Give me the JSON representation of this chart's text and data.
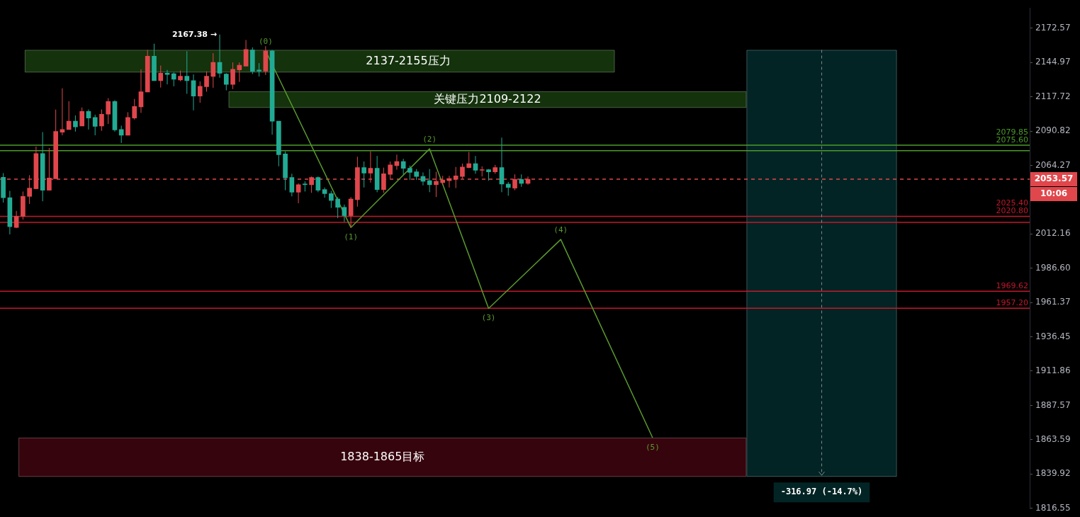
{
  "chart_data": {
    "type": "candlestick",
    "log": true,
    "tick_labels": "y",
    "categories": [
      null,
      null,
      null,
      null,
      null,
      null,
      null,
      null,
      null,
      null,
      null,
      null,
      null,
      null,
      null,
      null,
      null,
      null,
      null,
      null,
      null,
      null,
      null,
      null,
      null,
      null,
      null,
      null,
      null,
      null,
      null,
      null,
      null,
      null,
      null,
      null,
      null,
      null,
      null,
      null,
      null,
      null,
      null,
      null,
      null,
      null,
      null,
      null,
      null,
      null,
      null,
      null,
      null,
      null,
      null,
      null,
      null,
      null,
      null,
      null,
      null,
      null,
      null,
      null,
      null,
      null,
      null,
      null,
      null,
      null,
      null,
      null,
      null,
      null,
      null,
      null,
      null,
      null,
      null,
      null,
      null,
      null,
      null,
      null,
      null,
      null,
      null,
      null,
      null,
      null,
      null,
      null,
      null,
      null,
      null,
      null,
      null,
      null,
      null,
      null,
      null,
      null,
      null,
      null,
      null,
      null,
      null,
      null,
      null,
      null,
      null,
      null,
      null,
      null,
      null,
      null,
      null,
      null,
      null,
      null,
      null,
      null,
      null,
      null,
      null,
      null,
      null,
      null,
      null,
      null,
      null,
      null,
      null,
      null,
      null,
      null,
      null,
      null,
      null,
      null,
      null,
      null,
      null,
      null,
      null,
      null,
      null,
      null,
      null,
      null,
      null,
      null,
      null,
      null,
      null,
      null,
      null
    ],
    "ohlc": [
      [
        2055.1,
        2058.3,
        2035.8,
        2039.5
      ],
      [
        2039.5,
        2044.7,
        2011.8,
        2017.6
      ],
      [
        2017,
        2029.5,
        2016.5,
        2025.4
      ],
      [
        2025.4,
        2044.2,
        2022.9,
        2040.5
      ],
      [
        2040.5,
        2056.7,
        2034.8,
        2046.8
      ],
      [
        2046.3,
        2078.8,
        2046.3,
        2073.4
      ],
      [
        2073.4,
        2090,
        2036.8,
        2045.2
      ],
      [
        2045.2,
        2077.6,
        2045,
        2054.6
      ],
      [
        2054,
        2107.6,
        2054,
        2090.5
      ],
      [
        2089.9,
        2124.4,
        2087.5,
        2092
      ],
      [
        2092,
        2114.2,
        2092,
        2098.5
      ],
      [
        2098.5,
        2103,
        2090.4,
        2094.1
      ],
      [
        2094.7,
        2109.3,
        2094.7,
        2106.2
      ],
      [
        2106.2,
        2107.7,
        2092,
        2101
      ],
      [
        2101.5,
        2103.6,
        2087.5,
        2094.5
      ],
      [
        2094.7,
        2107.7,
        2091,
        2103.9
      ],
      [
        2104,
        2116.6,
        2096.3,
        2114
      ],
      [
        2114,
        2115,
        2090.4,
        2091.7
      ],
      [
        2092,
        2095,
        2081.5,
        2087.5
      ],
      [
        2087.5,
        2105.5,
        2087.5,
        2101.4
      ],
      [
        2101,
        2116,
        2099.8,
        2110
      ],
      [
        2109.7,
        2139.5,
        2105,
        2121.7
      ],
      [
        2121.4,
        2155,
        2121.4,
        2150
      ],
      [
        2150,
        2160,
        2130.5,
        2130.5
      ],
      [
        2130.5,
        2142.5,
        2125,
        2136.4
      ],
      [
        2136.4,
        2139,
        2127.5,
        2135.3
      ],
      [
        2136,
        2137,
        2126,
        2131.6
      ],
      [
        2131,
        2138.5,
        2130,
        2134
      ],
      [
        2134,
        2154,
        2120,
        2130.5
      ],
      [
        2130.5,
        2135.4,
        2107,
        2118.3
      ],
      [
        2118.3,
        2129.9,
        2113,
        2126
      ],
      [
        2125.6,
        2137.9,
        2121.7,
        2134
      ],
      [
        2133.8,
        2152.4,
        2124.8,
        2144.97
      ],
      [
        2145,
        2167.38,
        2132.8,
        2136.4
      ],
      [
        2135.7,
        2136.4,
        2122.8,
        2127.5
      ],
      [
        2127.5,
        2145,
        2123.8,
        2139.5
      ],
      [
        2139,
        2145,
        2129.5,
        2142.7
      ],
      [
        2142,
        2163,
        2142,
        2155.4
      ],
      [
        2155,
        2157,
        2135.7,
        2137.9
      ],
      [
        2139,
        2144.4,
        2133.8,
        2138
      ],
      [
        2138,
        2158,
        2135,
        2154.3
      ],
      [
        2154.3,
        2155,
        2088,
        2098.5
      ],
      [
        2098.5,
        2098.5,
        2063.5,
        2072.5
      ],
      [
        2073,
        2075,
        2045.2,
        2054.6
      ],
      [
        2055,
        2057.8,
        2040.5,
        2043.7
      ],
      [
        2043.7,
        2050.4,
        2035.3,
        2049.4
      ],
      [
        2050,
        2052,
        2044.2,
        2049.4
      ],
      [
        2049.4,
        2055.7,
        2043.2,
        2055
      ],
      [
        2055,
        2055.7,
        2043.7,
        2045.2
      ],
      [
        2045.7,
        2047.3,
        2039.5,
        2042.6
      ],
      [
        2042.6,
        2044.7,
        2031.7,
        2037.4
      ],
      [
        2038.5,
        2040,
        2024,
        2032.2
      ],
      [
        2032.2,
        2034.3,
        2021.2,
        2025.9
      ],
      [
        2025.9,
        2040,
        2017,
        2038.5
      ],
      [
        2038,
        2070.9,
        2032.7,
        2062.5
      ],
      [
        2062.5,
        2067.2,
        2047.3,
        2058.3
      ],
      [
        2058.3,
        2075.1,
        2051,
        2062
      ],
      [
        2062,
        2071.5,
        2043.7,
        2045.7
      ],
      [
        2045.7,
        2062.5,
        2043.2,
        2057.8
      ],
      [
        2057.3,
        2067.2,
        2054.1,
        2064.6
      ],
      [
        2064,
        2072.5,
        2060.9,
        2067.2
      ],
      [
        2067.2,
        2069.3,
        2057.3,
        2062
      ],
      [
        2062,
        2064,
        2053,
        2058.8
      ],
      [
        2059.3,
        2061.4,
        2053,
        2055.7
      ],
      [
        2055.7,
        2058.8,
        2048.9,
        2052
      ],
      [
        2052.5,
        2061.4,
        2043.7,
        2049.4
      ],
      [
        2049.4,
        2059.3,
        2040,
        2052
      ],
      [
        2051,
        2056.2,
        2049.4,
        2053
      ],
      [
        2052.5,
        2056.2,
        2047.3,
        2054.1
      ],
      [
        2053.5,
        2063,
        2046.8,
        2056.2
      ],
      [
        2055.7,
        2065.6,
        2054.1,
        2063
      ],
      [
        2062.5,
        2074.6,
        2062,
        2065.6
      ],
      [
        2065.6,
        2071.5,
        2057.8,
        2060.4
      ],
      [
        2060.4,
        2063.5,
        2055.7,
        2060.9
      ],
      [
        2060.9,
        2061.4,
        2052.5,
        2059.3
      ],
      [
        2059.3,
        2064.6,
        2057.8,
        2062.5
      ],
      [
        2062.5,
        2085.7,
        2043.7,
        2049.9
      ],
      [
        2049.9,
        2051.5,
        2041,
        2047.3
      ],
      [
        2046.8,
        2057.3,
        2045.2,
        2053.5
      ],
      [
        2053.5,
        2057.3,
        2047.8,
        2050.4
      ],
      [
        2050.4,
        2055.7,
        2049.4,
        2053.57
      ],
      null,
      null,
      null,
      null,
      null,
      null,
      null,
      null,
      null,
      null,
      null,
      null,
      null,
      null,
      null,
      null,
      null,
      null,
      null,
      null,
      null,
      null,
      null,
      null,
      null,
      null,
      null,
      null,
      null,
      null,
      null,
      null,
      null,
      null,
      null,
      null,
      null,
      null,
      null,
      null,
      null,
      null,
      null,
      null,
      null,
      null,
      null,
      null,
      null,
      null,
      null,
      null,
      null,
      null,
      null,
      null,
      null,
      null,
      null,
      null,
      null,
      null,
      null,
      null,
      null,
      null,
      null,
      null,
      null,
      null,
      null,
      null,
      null,
      null,
      null,
      null
    ],
    "series": [
      {
        "type": "line",
        "color": "#5a9a2e",
        "values": [
          null,
          null,
          null,
          null,
          null,
          null,
          null,
          null,
          null,
          null,
          null,
          null,
          null,
          null,
          null,
          null,
          null,
          null,
          null,
          null,
          null,
          null,
          null,
          null,
          null,
          null,
          null,
          null,
          null,
          null,
          null,
          null,
          null,
          null,
          null,
          null,
          null,
          null,
          null,
          null,
          2154.3,
          null,
          null,
          null,
          null,
          null,
          null,
          null,
          null,
          null,
          null,
          null,
          null,
          2017,
          null,
          null,
          null,
          null,
          null,
          null,
          null,
          null,
          null,
          null,
          null,
          2077,
          null,
          null,
          null,
          null,
          null,
          null,
          null,
          null,
          1957,
          null,
          null,
          null,
          null,
          null,
          null,
          null,
          null,
          null,
          null,
          2008,
          null,
          null,
          null,
          null,
          null,
          null,
          null,
          null,
          null,
          null,
          null,
          null,
          null,
          1865,
          null,
          null,
          null,
          null,
          null,
          null,
          null,
          null,
          null,
          null,
          null,
          null,
          null,
          null,
          null,
          null,
          null,
          null,
          null,
          null,
          null,
          null,
          null,
          null,
          null,
          null,
          null,
          null,
          null,
          null,
          null,
          null,
          null,
          null,
          null,
          null,
          null,
          null,
          null,
          null,
          null,
          null,
          null,
          null,
          null,
          null,
          null,
          null,
          null,
          null,
          null,
          null,
          null,
          null,
          null,
          null,
          null
        ]
      }
    ],
    "colors": [
      "#22ab94",
      "#22ab94",
      "#e0474c",
      "#e0474c",
      "#e0474c",
      "#e0474c",
      "#22ab94",
      "#e0474c",
      "#e0474c",
      "#e0474c",
      "#e0474c",
      "#22ab94",
      "#e0474c",
      "#22ab94",
      "#22ab94",
      "#e0474c",
      "#e0474c",
      "#22ab94",
      "#22ab94",
      "#e0474c",
      "#e0474c",
      "#e0474c",
      "#e0474c",
      "#22ab94",
      "#e0474c",
      "#22ab94",
      "#22ab94",
      "#e0474c",
      "#22ab94",
      "#22ab94",
      "#e0474c",
      "#e0474c",
      "#e0474c",
      "#22ab94",
      "#22ab94",
      "#e0474c",
      "#e0474c",
      "#e0474c",
      "#22ab94",
      "#22ab94",
      "#e0474c",
      "#22ab94",
      "#22ab94",
      "#22ab94",
      "#22ab94",
      "#e0474c",
      "#22ab94",
      "#e0474c",
      "#22ab94",
      "#22ab94",
      "#22ab94",
      "#22ab94",
      "#22ab94",
      "#e0474c",
      "#e0474c",
      "#22ab94",
      "#e0474c",
      "#22ab94",
      "#e0474c",
      "#e0474c",
      "#e0474c",
      "#22ab94",
      "#22ab94",
      "#22ab94",
      "#22ab94",
      "#22ab94",
      "#e0474c",
      "#e0474c",
      "#e0474c",
      "#e0474c",
      "#e0474c",
      "#e0474c",
      "#22ab94",
      "#e0474c",
      "#22ab94",
      "#e0474c",
      "#22ab94",
      "#22ab94",
      "#e0474c",
      "#22ab94",
      "#e0474c",
      null,
      null,
      null,
      null,
      null,
      null,
      null,
      null,
      null,
      null,
      null,
      null,
      null,
      null,
      null,
      null,
      null,
      null,
      null,
      null,
      null,
      null,
      null,
      null,
      null,
      null,
      null,
      null,
      null,
      null,
      null,
      null,
      null,
      null,
      null,
      null,
      null,
      null,
      null,
      null,
      null,
      null,
      null,
      null,
      null,
      null,
      null,
      null,
      null,
      null,
      null,
      null,
      null,
      null,
      null,
      null,
      null,
      null,
      null,
      null,
      null,
      null,
      null,
      null,
      null,
      null,
      null,
      null,
      null,
      null,
      null,
      null,
      null,
      null,
      null,
      null
    ],
    "ylim": [
      1816,
      2189
    ],
    "yticks": [
      2172.57,
      2144.97,
      2117.72,
      2090.82,
      2064.27,
      2012.16,
      {
        "value": 1986.6,
        "label": "1986.60"
      },
      1961.37,
      1936.45,
      1911.86,
      1887.57,
      1863.59,
      1839.92,
      1816.55
    ],
    "bands": [
      {
        "axis": "y",
        "from": 2137,
        "to": 2155,
        "label": "2137-2155压力",
        "color": "#14320c"
      },
      {
        "axis": "y",
        "from": 2109,
        "to": 2122,
        "label": "关键压力2109-2122",
        "color": "#14320c"
      },
      {
        "axis": "y",
        "from": 1838,
        "to": 1865,
        "label": "1838-1865目标",
        "color": "#36040d"
      },
      {
        "axis": "y",
        "from": 1838.03,
        "to": 2155,
        "label": "-316.97 (-14.7%)",
        "color": "#032424"
      }
    ],
    "ref_lines": [
      {
        "axis": "y",
        "value": 2079.85,
        "label": "2079.85",
        "color": "#4c9a2a"
      },
      {
        "axis": "y",
        "value": 2075.6,
        "label": "2075.60",
        "color": "#4c9a2a"
      },
      {
        "axis": "y",
        "value": 2053.57,
        "label": "2053.57",
        "color": "#e0474c",
        "line_style": "dashed"
      },
      {
        "axis": "y",
        "value": 2025.4,
        "label": "2025.40",
        "color": "#c2182b"
      },
      {
        "axis": "y",
        "value": 2020.8,
        "label": "2020.80",
        "color": "#c2182b"
      },
      {
        "axis": "y",
        "value": 1969.62,
        "label": "1969.62",
        "color": "#c2182b"
      },
      {
        "axis": "y",
        "value": 1957.2,
        "label": "1957.20",
        "color": "#c2182b"
      }
    ],
    "annotations": [
      "2167.38 →",
      "10:06",
      "(0)",
      "(1)",
      "(2)",
      "(3)",
      "(4)",
      "(5)"
    ]
  }
}
